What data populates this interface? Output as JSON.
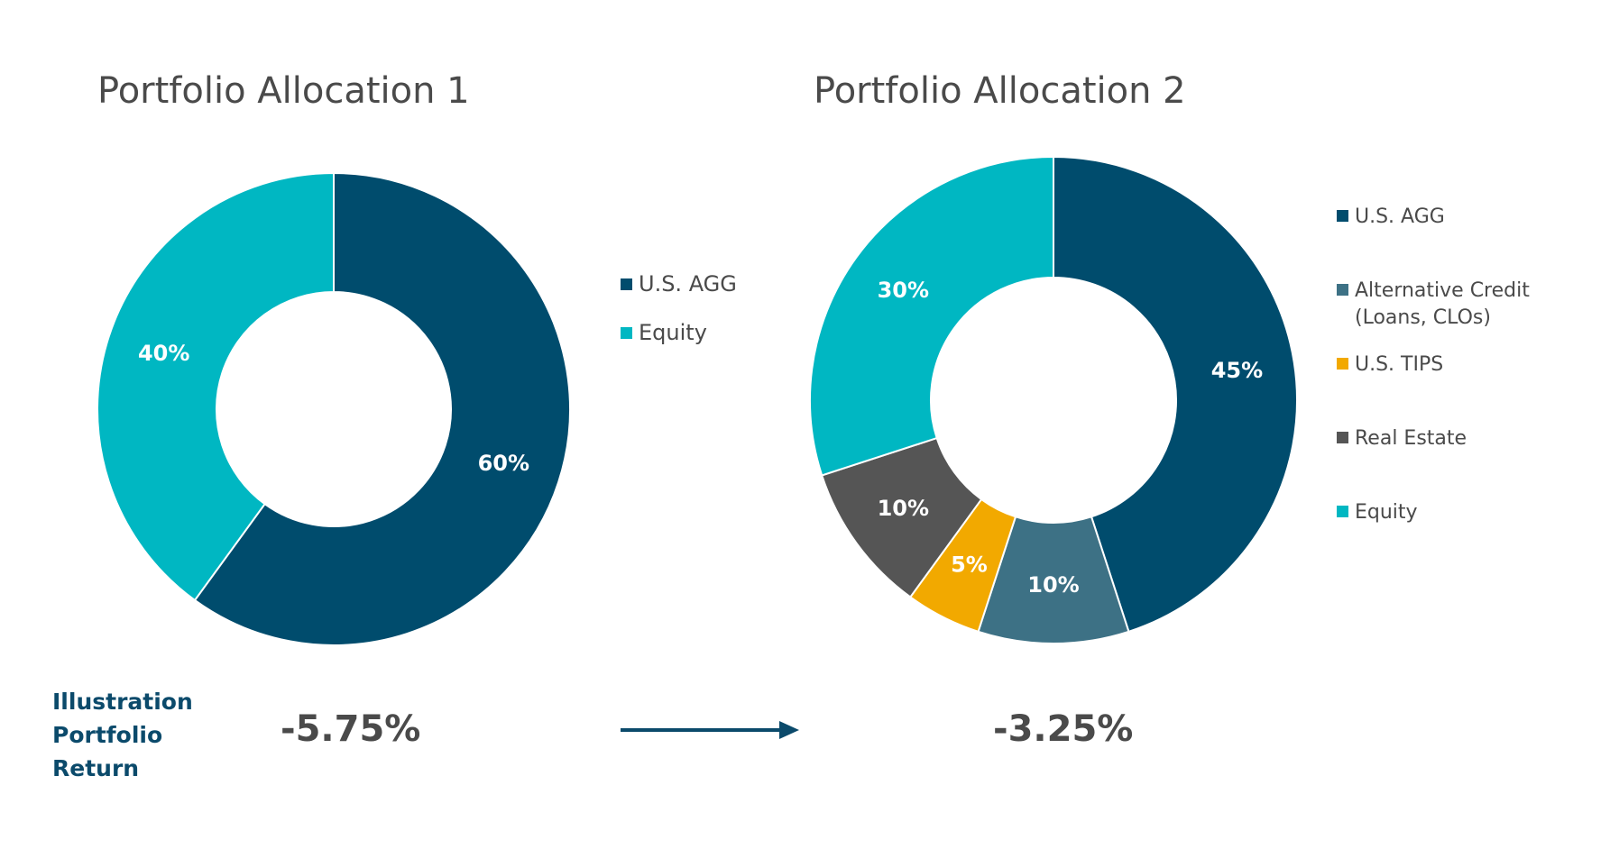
{
  "chart_data": [
    {
      "type": "pie",
      "title": "Portfolio Allocation 1",
      "categories": [
        "U.S. AGG",
        "Equity"
      ],
      "values": [
        60,
        40
      ],
      "labels": [
        "60%",
        "40%"
      ],
      "colors": [
        "#004c6d",
        "#00b7c2"
      ],
      "legend": "right"
    },
    {
      "type": "pie",
      "title": "Portfolio Allocation 2",
      "categories": [
        "U.S. AGG",
        "Alternative Credit (Loans, CLOs)",
        "U.S. TIPS",
        "Real Estate",
        "Equity"
      ],
      "values": [
        45,
        10,
        5,
        10,
        30
      ],
      "labels": [
        "45%",
        "10%",
        "5%",
        "10%",
        "30%"
      ],
      "colors": [
        "#004c6d",
        "#3d7185",
        "#f2a900",
        "#555555",
        "#00b7c2"
      ],
      "legend": "right"
    }
  ],
  "legend_2_lines": [
    [
      "U.S. AGG"
    ],
    [
      "Alternative Credit",
      "(Loans, CLOs)"
    ],
    [
      "U.S. TIPS"
    ],
    [
      "Real Estate"
    ],
    [
      "Equity"
    ]
  ],
  "return_section": {
    "label_lines": [
      "Illustration",
      "Portfolio",
      "Return"
    ],
    "value_1": "-5.75%",
    "value_2": "-3.25%"
  },
  "arrow_color": "#0b4a6b"
}
